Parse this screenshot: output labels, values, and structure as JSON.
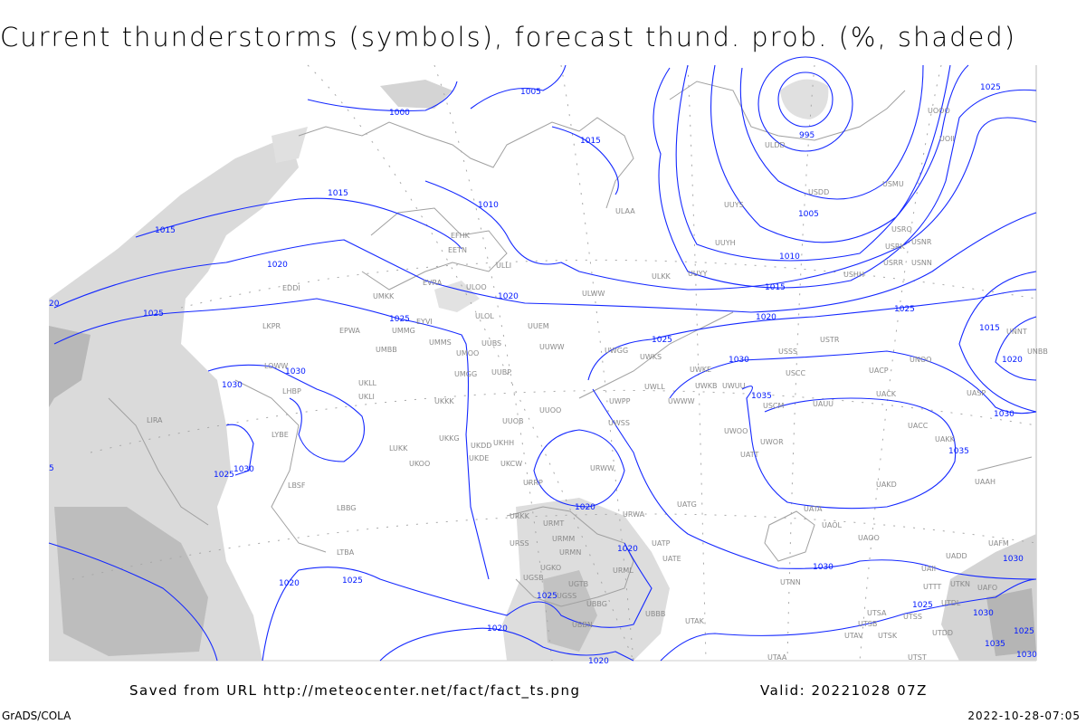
{
  "title": "Current thunderstorms (symbols), forecast thund. prob. (%, shaded)",
  "footer": {
    "saved_from": "Saved from URL http://meteocenter.net/fact/fact_ts.png",
    "valid": "Valid: 20221028 07Z",
    "software": "GrADS/COLA",
    "timestamp": "2022-10-28-07:05"
  },
  "colors": {
    "isobars": "#0018ff",
    "stations": "#8a8a8a",
    "coastlines": "#a0a0a0",
    "probability_shading": "#d0d0d0"
  },
  "map": {
    "isobar_labels": [
      "1000",
      "1005",
      "1015",
      "995",
      "1010",
      "1015",
      "1015",
      "1020",
      "1020",
      "1025",
      "1025",
      "1025",
      "1025",
      "1025",
      "1005",
      "1010",
      "1015",
      "1020",
      "1015",
      "1020",
      "1030",
      "1030",
      "1030",
      "1035",
      "1035",
      "1030",
      "1030",
      "1025",
      "1020",
      "1020",
      "1030",
      "1020",
      "1025",
      "1025",
      "1020",
      "1020",
      "1025",
      "1030",
      "1030",
      "1025",
      "1035",
      "1030",
      "20",
      "5"
    ],
    "stations": [
      "ULAA",
      "ULKK",
      "UUYY",
      "UUYH",
      "UUYS",
      "ULDD",
      "USDD",
      "USMU",
      "UOOO",
      "UOII",
      "USRO",
      "USRK",
      "USNR",
      "USRR",
      "USNN",
      "USHH",
      "UNNT",
      "UNBB",
      "USTR",
      "USSS",
      "USCC",
      "UACP",
      "UNOO",
      "UASP",
      "UACK",
      "UAUU",
      "USCM",
      "UWUU",
      "UWKE",
      "UWKB",
      "UWLL",
      "UWWW",
      "UWPP",
      "UWGG",
      "UWKS",
      "UWOO",
      "UWOR",
      "UATT",
      "UACC",
      "UAKK",
      "UAKD",
      "UAAH",
      "UATA",
      "UAOL",
      "UAOO",
      "UATG",
      "URWA",
      "UATP",
      "UATE",
      "URML",
      "UBBB",
      "UTAK",
      "UTNN",
      "UADD",
      "UAFM",
      "UAII",
      "UTTT",
      "UTKN",
      "UAFO",
      "UTDL",
      "UTSA",
      "UTSB",
      "UTSS",
      "UTDD",
      "UTAV",
      "UTSK",
      "UTST",
      "UTAA",
      "UGTB",
      "UGSB",
      "UGKO",
      "UBBN",
      "UBBG",
      "UGSS",
      "URMT",
      "URMM",
      "URMN",
      "URSS",
      "URKK",
      "URRP",
      "UKCW",
      "URWW",
      "UWSS",
      "UUOO",
      "UUOB",
      "UKHH",
      "UKDD",
      "UKDE",
      "UKKG",
      "UKKK",
      "UKOO",
      "LUKK",
      "UMGG",
      "UUBP",
      "UUWW",
      "UUEM",
      "ULOL",
      "UUBS",
      "UMMS",
      "UMOO",
      "UMMG",
      "UMBB",
      "EYVI",
      "UMKK",
      "EVRA",
      "ULOO",
      "ULWW",
      "EETN",
      "EFHK",
      "ULLI",
      "EPWA",
      "EDDI",
      "LKPR",
      "LOWW",
      "LHBP",
      "UKLL",
      "UKLI",
      "LYBE",
      "LBSF",
      "LBBG",
      "LTBA",
      "LIRA"
    ]
  }
}
